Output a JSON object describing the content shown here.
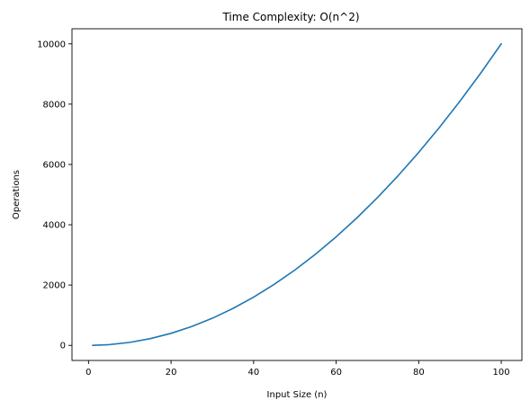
{
  "chart_data": {
    "type": "line",
    "title": "Time Complexity: O(n^2)",
    "xlabel": "Input Size (n)",
    "ylabel": "Operations",
    "xlim": [
      -4,
      105
    ],
    "ylim": [
      -500,
      10500
    ],
    "xticks": [
      0,
      20,
      40,
      60,
      80,
      100
    ],
    "yticks": [
      0,
      2000,
      4000,
      6000,
      8000,
      10000
    ],
    "grid": false,
    "series": [
      {
        "color": "#1f77b4",
        "x": [
          1,
          5,
          10,
          15,
          20,
          25,
          30,
          35,
          40,
          45,
          50,
          55,
          60,
          65,
          70,
          75,
          80,
          85,
          90,
          95,
          100
        ],
        "y": [
          1,
          25,
          100,
          225,
          400,
          625,
          900,
          1225,
          1600,
          2025,
          2500,
          3025,
          3600,
          4225,
          4900,
          5625,
          6400,
          7225,
          8100,
          9025,
          10000
        ]
      }
    ]
  }
}
